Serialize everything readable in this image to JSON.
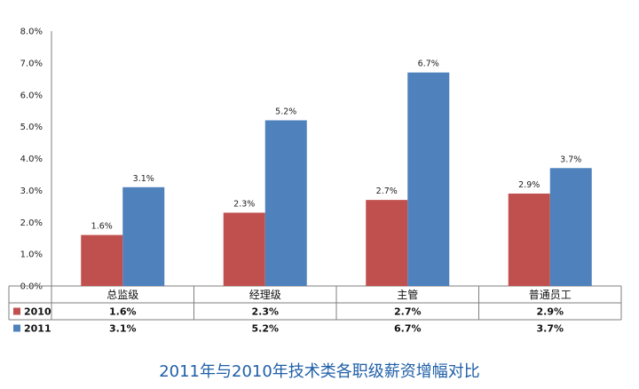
{
  "chart_data": {
    "type": "bar",
    "title": "2011年与2010年技术类各职级薪资增幅对比",
    "categories": [
      "总监级",
      "经理级",
      "主管",
      "普通员工"
    ],
    "ylim": [
      0,
      8
    ],
    "yticks": [
      "0.0%",
      "1.0%",
      "2.0%",
      "3.0%",
      "4.0%",
      "5.0%",
      "6.0%",
      "7.0%",
      "8.0%"
    ],
    "series": [
      {
        "name": "2010",
        "color": "#c0504d",
        "values": [
          1.6,
          2.3,
          2.7,
          2.9
        ],
        "labels": [
          "1.6%",
          "2.3%",
          "2.7%",
          "2.9%"
        ]
      },
      {
        "name": "2011",
        "color": "#4f81bd",
        "values": [
          3.1,
          5.2,
          6.7,
          3.7
        ],
        "labels": [
          "3.1%",
          "5.2%",
          "6.7%",
          "3.7%"
        ]
      }
    ],
    "grid": false,
    "legend": "data-table"
  }
}
